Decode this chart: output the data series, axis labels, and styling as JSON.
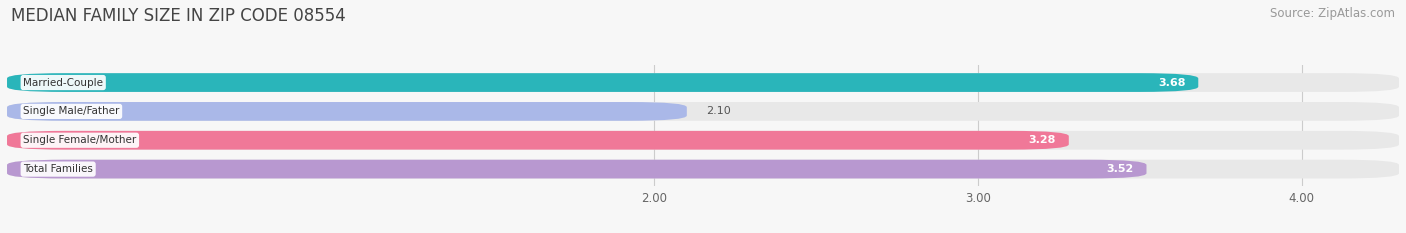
{
  "title": "MEDIAN FAMILY SIZE IN ZIP CODE 08554",
  "source": "Source: ZipAtlas.com",
  "categories": [
    "Married-Couple",
    "Single Male/Father",
    "Single Female/Mother",
    "Total Families"
  ],
  "values": [
    3.68,
    2.1,
    3.28,
    3.52
  ],
  "bar_colors": [
    "#2ab5ba",
    "#aab8e8",
    "#f07898",
    "#b898d0"
  ],
  "label_colors": [
    "white",
    "black",
    "white",
    "white"
  ],
  "xlim": [
    0.0,
    4.3
  ],
  "xstart": 0.0,
  "xticks": [
    2.0,
    3.0,
    4.0
  ],
  "xtick_labels": [
    "2.00",
    "3.00",
    "4.00"
  ],
  "background_color": "#f7f7f7",
  "bar_background_color": "#e8e8e8",
  "title_fontsize": 12,
  "source_fontsize": 8.5,
  "bar_height": 0.65
}
